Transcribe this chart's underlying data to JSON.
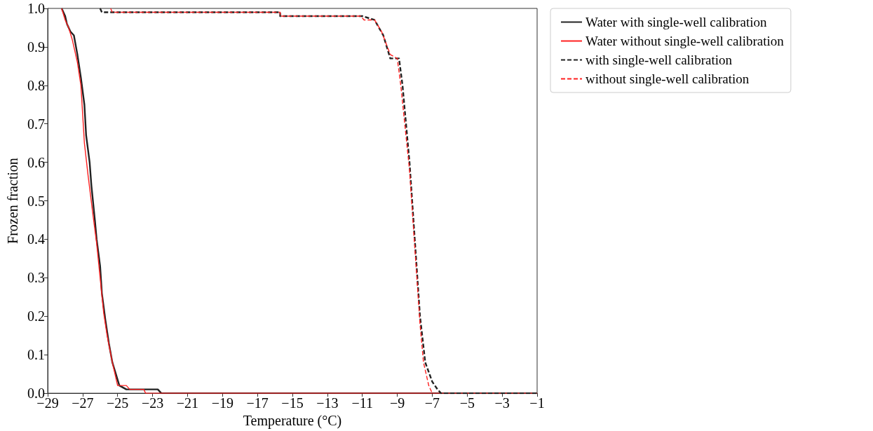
{
  "chart_data": {
    "type": "line",
    "xlabel": "Temperature (°C)",
    "ylabel": "Frozen fraction",
    "xlim": [
      -29,
      -1
    ],
    "xticks": [
      -29,
      -27,
      -25,
      -23,
      -21,
      -19,
      -17,
      -15,
      -13,
      -11,
      -9,
      -7,
      -5,
      -3,
      -1
    ],
    "ylim": [
      0,
      1
    ],
    "yticks": [
      {
        "value": 0,
        "label": "0.0"
      },
      0.1,
      0.2,
      0.3,
      0.4,
      0.5,
      0.6,
      0.7,
      0.8,
      0.9,
      {
        "value": 1,
        "label": "1.0"
      }
    ],
    "grid": false,
    "legend": "top right",
    "marker": "none",
    "series": [
      {
        "name": "Water with single-well calibration",
        "color": "#222222",
        "line_style": "solid",
        "x": [
          -28.2,
          -28.0,
          -27.9,
          -27.7,
          -27.5,
          -27.3,
          -27.1,
          -26.9,
          -26.8,
          -26.6,
          -26.5,
          -26.3,
          -26.2,
          -26.0,
          -25.9,
          -25.7,
          -25.5,
          -25.3,
          -25.1,
          -24.9,
          -24.5,
          -22.7,
          -22.5,
          -1
        ],
        "values": [
          1.0,
          0.98,
          0.96,
          0.94,
          0.93,
          0.88,
          0.82,
          0.75,
          0.67,
          0.6,
          0.54,
          0.45,
          0.4,
          0.33,
          0.26,
          0.19,
          0.13,
          0.08,
          0.05,
          0.02,
          0.01,
          0.01,
          0,
          0
        ]
      },
      {
        "name": "Water without single-well calibration",
        "color": "#ff2020",
        "line_style": "solid",
        "x": [
          -28.2,
          -28.0,
          -27.8,
          -27.6,
          -27.3,
          -27.1,
          -26.9,
          -26.7,
          -26.4,
          -26.2,
          -26.0,
          -25.8,
          -25.6,
          -25.3,
          -25.0,
          -24.5,
          -24.3,
          -23.5,
          -23.4,
          -1
        ],
        "values": [
          1.0,
          0.97,
          0.95,
          0.92,
          0.86,
          0.8,
          0.65,
          0.57,
          0.46,
          0.39,
          0.3,
          0.21,
          0.15,
          0.08,
          0.02,
          0.02,
          0.01,
          0.01,
          0,
          0
        ]
      },
      {
        "name": "with single-well calibration",
        "color": "#222222",
        "line_style": "dashed",
        "x": [
          -26.0,
          -25.9,
          -15.7,
          -15.7,
          -11.0,
          -10.3,
          -9.8,
          -9.4,
          -8.9,
          -8.7,
          -8.3,
          -8.0,
          -7.7,
          -7.4,
          -7.0,
          -6.7,
          -6.5,
          -1
        ],
        "values": [
          1.0,
          0.99,
          0.99,
          0.98,
          0.98,
          0.97,
          0.93,
          0.87,
          0.87,
          0.8,
          0.6,
          0.4,
          0.2,
          0.08,
          0.03,
          0.01,
          0,
          0
        ]
      },
      {
        "name": "without single-well calibration",
        "color": "#ff2020",
        "line_style": "dashed",
        "x": [
          -25.4,
          -25.3,
          -15.7,
          -15.7,
          -11.1,
          -10.9,
          -10.3,
          -9.9,
          -9.4,
          -9.0,
          -8.8,
          -8.3,
          -8.0,
          -7.7,
          -7.5,
          -7.2,
          -7.0
        ],
        "values": [
          1.0,
          0.99,
          0.99,
          0.98,
          0.98,
          0.97,
          0.97,
          0.94,
          0.88,
          0.87,
          0.8,
          0.58,
          0.38,
          0.18,
          0.08,
          0.02,
          0
        ]
      }
    ]
  }
}
